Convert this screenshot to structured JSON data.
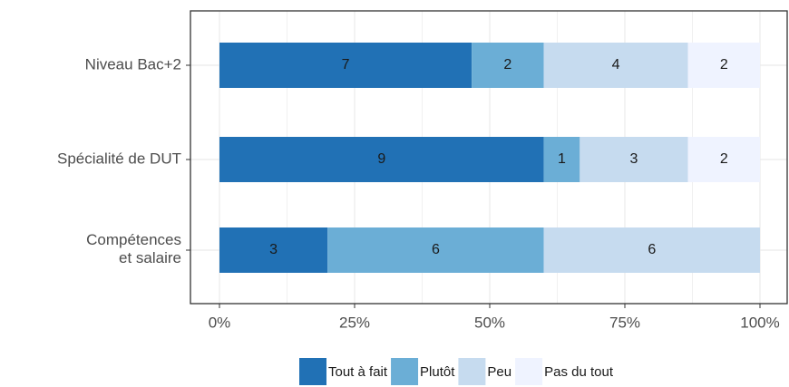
{
  "chart_data": {
    "type": "bar",
    "orientation": "horizontal",
    "stacked": "percent",
    "categories": [
      "Niveau Bac+2",
      "Spécialité de DUT",
      "Compétences\net salaire"
    ],
    "series": [
      {
        "name": "Tout à fait",
        "color": "#2171b5",
        "values": [
          7,
          9,
          3
        ]
      },
      {
        "name": "Plutôt",
        "color": "#6baed6",
        "values": [
          2,
          1,
          6
        ]
      },
      {
        "name": "Peu",
        "color": "#c6dbef",
        "values": [
          4,
          3,
          6
        ]
      },
      {
        "name": "Pas du tout",
        "color": "#eff3ff",
        "values": [
          2,
          2,
          null
        ]
      }
    ],
    "xlim": [
      0,
      100
    ],
    "xticks": [
      {
        "value": 0,
        "label": "0%"
      },
      {
        "value": 25,
        "label": "25%"
      },
      {
        "value": 50,
        "label": "50%"
      },
      {
        "value": 75,
        "label": "75%"
      },
      {
        "value": 100,
        "label": "100%"
      }
    ],
    "grid": true,
    "legend": "bottom"
  }
}
